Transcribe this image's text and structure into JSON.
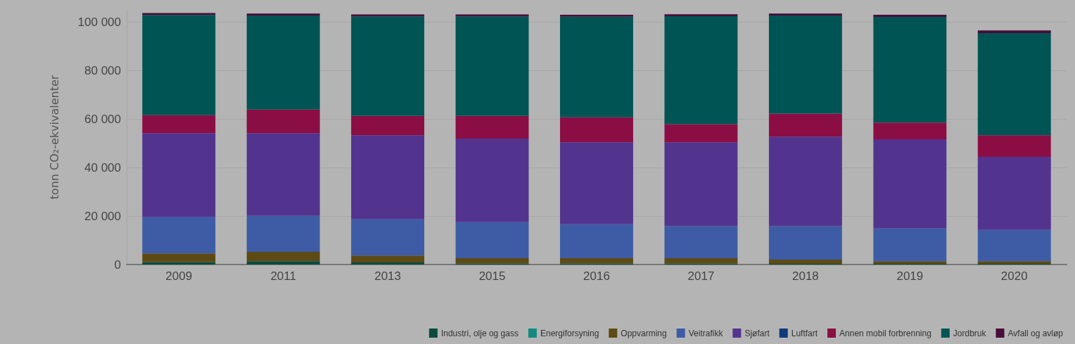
{
  "chart_data": {
    "type": "bar",
    "stacked": true,
    "ylabel": "tonn CO₂-ekvivalenter",
    "categories": [
      "2009",
      "2011",
      "2013",
      "2015",
      "2016",
      "2017",
      "2018",
      "2019",
      "2020"
    ],
    "series": [
      {
        "name": "Industri, olje og gass",
        "color": "#0b4a3e",
        "values": [
          1000,
          1400,
          900,
          400,
          400,
          400,
          300,
          300,
          300
        ]
      },
      {
        "name": "Energiforsyning",
        "color": "#138a80",
        "values": [
          0,
          0,
          0,
          0,
          0,
          0,
          0,
          0,
          0
        ]
      },
      {
        "name": "Oppvarming",
        "color": "#5e4a14",
        "values": [
          3600,
          3800,
          2800,
          2200,
          2200,
          2200,
          1700,
          1100,
          1100
        ]
      },
      {
        "name": "Veitrafikk",
        "color": "#3e5ca6",
        "values": [
          14900,
          14900,
          14900,
          14900,
          14000,
          13200,
          13800,
          13500,
          12900
        ]
      },
      {
        "name": "Sjøfart",
        "color": "#52348f",
        "values": [
          34700,
          34100,
          34700,
          34400,
          33800,
          34600,
          36900,
          36700,
          30100
        ]
      },
      {
        "name": "Luftfart",
        "color": "#0e3a7a",
        "values": [
          0,
          0,
          0,
          0,
          0,
          0,
          0,
          0,
          0
        ]
      },
      {
        "name": "Annen mobil forbrenning",
        "color": "#8a0e44",
        "values": [
          7400,
          9700,
          8000,
          9400,
          10300,
          7500,
          9500,
          6900,
          8900
        ]
      },
      {
        "name": "Jordbruk",
        "color": "#015454",
        "values": [
          41300,
          38800,
          41000,
          41000,
          41500,
          44500,
          40500,
          43600,
          42100
        ]
      },
      {
        "name": "Avfall og avløp",
        "color": "#4a0c3a",
        "values": [
          800,
          800,
          800,
          800,
          800,
          800,
          800,
          900,
          1100
        ]
      }
    ],
    "ylim": [
      0,
      105000
    ],
    "yticks": [
      {
        "value": 0,
        "label": "0"
      },
      {
        "value": 20000,
        "label": "20 000"
      },
      {
        "value": 40000,
        "label": "40 000"
      },
      {
        "value": 60000,
        "label": "60 000"
      },
      {
        "value": 80000,
        "label": "80 000"
      },
      {
        "value": 100000,
        "label": "100 000"
      }
    ],
    "grid": "y",
    "legend": "bottom"
  }
}
